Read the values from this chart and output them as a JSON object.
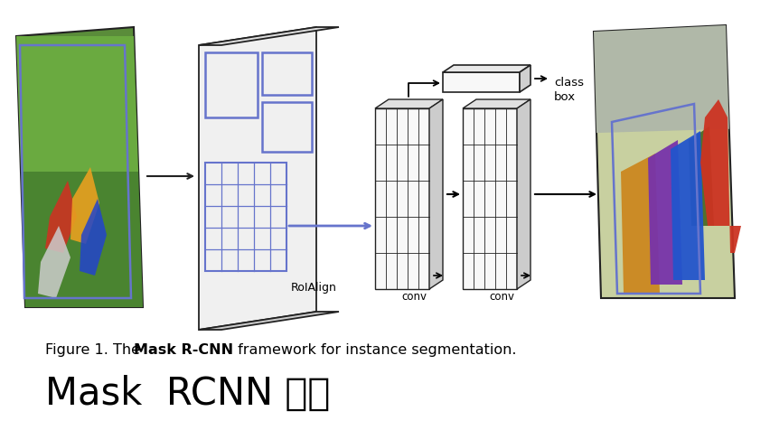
{
  "title": "Mask  RCNN 结构",
  "caption_normal": "Figure 1. The ",
  "caption_bold": "Mask R-CNN",
  "caption_end": " framework for instance segmentation.",
  "roialign_label": "RoIAlign",
  "conv_label1": "conv",
  "conv_label2": "conv",
  "class_box_label": "class\nbox",
  "bg_color": "#ffffff",
  "blue_color": "#6674cc",
  "arrow_color": "#000000",
  "edge_dark": "#222222",
  "face_light": "#f8f8f8",
  "face_top": "#e0e0e0",
  "face_right": "#c8c8c8",
  "soccer_green_dark": "#4a8a32",
  "soccer_green_mid": "#5a9e3a",
  "soccer_green_light": "#7ab848",
  "out_bg": "#c8d0a0",
  "out_gray": "#a8b4a0"
}
